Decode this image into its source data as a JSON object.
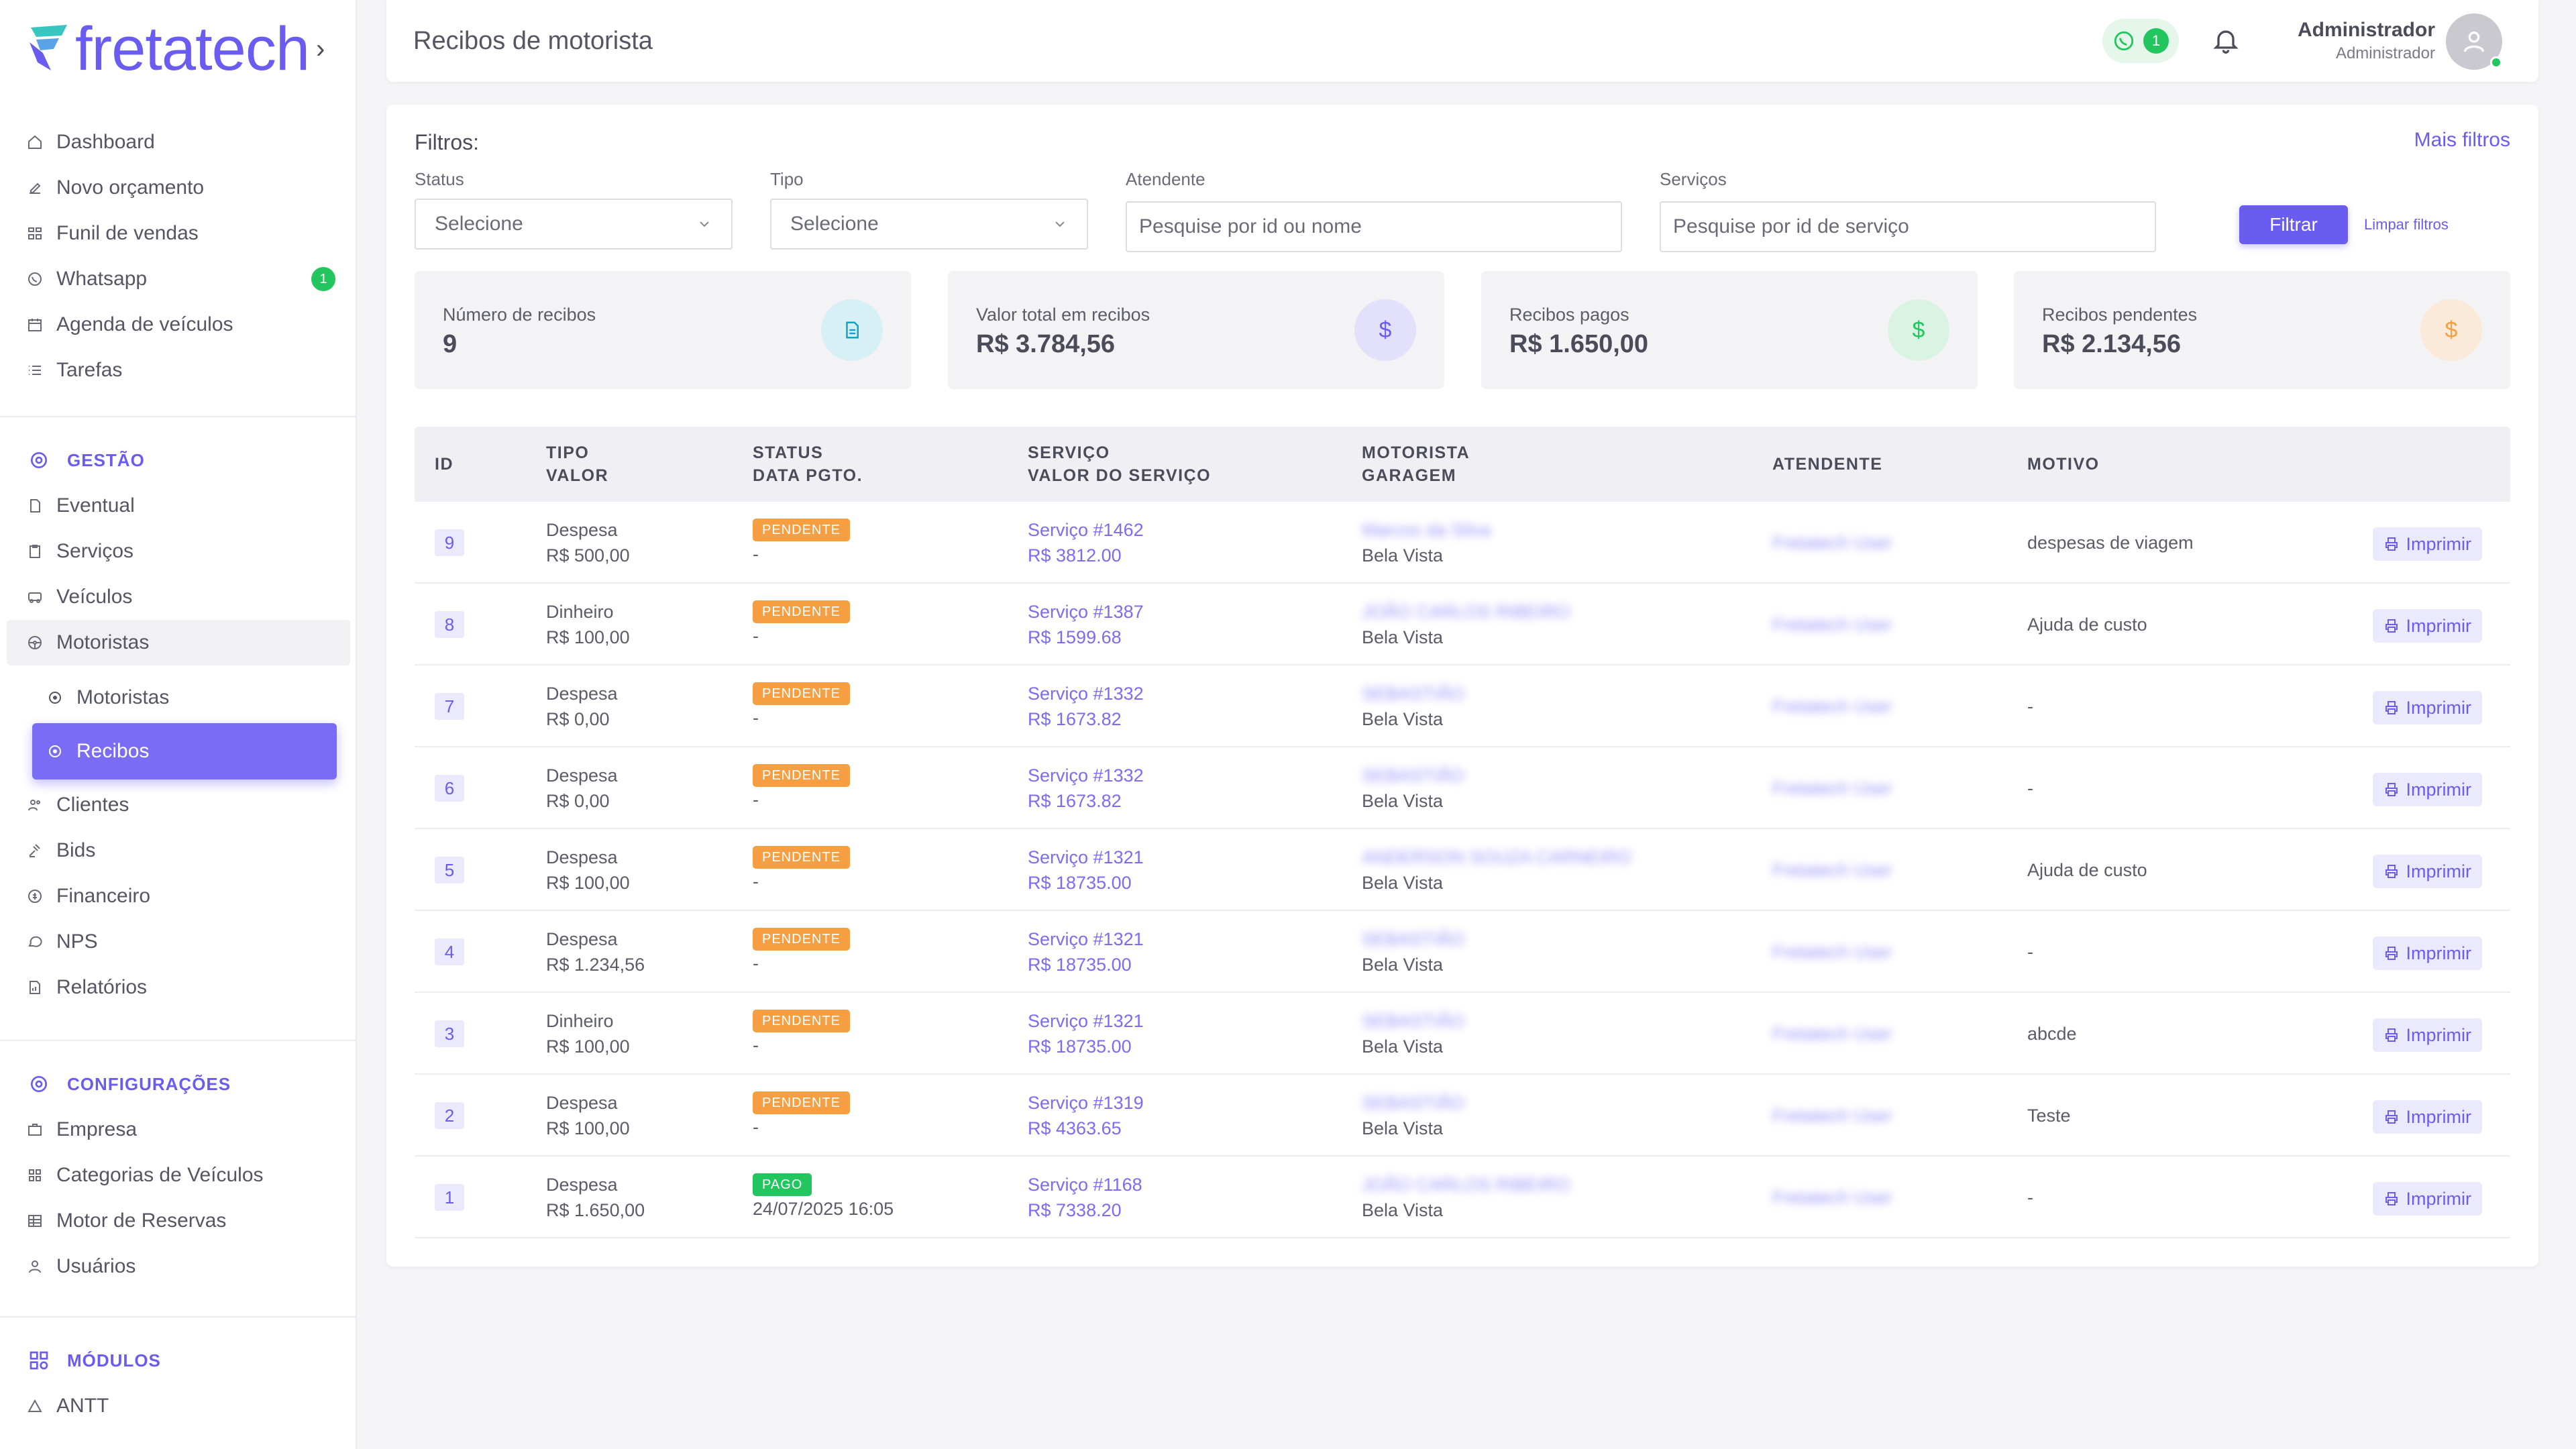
{
  "app": {
    "logo_text": "fretatech",
    "logo_chevron": "›"
  },
  "sidebar": {
    "main_items": [
      {
        "label": "Dashboard",
        "icon": "home-icon"
      },
      {
        "label": "Novo orçamento",
        "icon": "edit-icon"
      },
      {
        "label": "Funil de vendas",
        "icon": "funnel-icon"
      },
      {
        "label": "Whatsapp",
        "icon": "whatsapp-icon",
        "badge": "1"
      },
      {
        "label": "Agenda de veículos",
        "icon": "calendar-icon"
      },
      {
        "label": "Tarefas",
        "icon": "list-icon"
      }
    ],
    "gestao": {
      "heading": "GESTÃO",
      "items": [
        {
          "label": "Eventual"
        },
        {
          "label": "Serviços"
        },
        {
          "label": "Veículos"
        },
        {
          "label": "Motoristas"
        },
        {
          "label": "Motoristas"
        },
        {
          "label": "Recibos"
        },
        {
          "label": "Clientes"
        },
        {
          "label": "Bids"
        },
        {
          "label": "Financeiro"
        },
        {
          "label": "NPS"
        },
        {
          "label": "Relatórios"
        }
      ]
    },
    "config": {
      "heading": "CONFIGURAÇÕES",
      "items": [
        {
          "label": "Empresa"
        },
        {
          "label": "Categorias de Veículos"
        },
        {
          "label": "Motor de Reservas"
        },
        {
          "label": "Usuários"
        }
      ]
    },
    "modulos": {
      "heading": "MÓDULOS",
      "items": [
        {
          "label": "ANTT"
        }
      ]
    }
  },
  "header": {
    "title": "Recibos de motorista",
    "whatsapp_count": "1",
    "user_name": "Administrador",
    "user_role": "Administrador"
  },
  "filters": {
    "title": "Filtros:",
    "more": "Mais filtros",
    "status": {
      "label": "Status",
      "value": "Selecione"
    },
    "tipo": {
      "label": "Tipo",
      "value": "Selecione"
    },
    "atendente": {
      "label": "Atendente",
      "placeholder": "Pesquise por id ou nome"
    },
    "servicos": {
      "label": "Serviços",
      "placeholder": "Pesquise por id de serviço"
    },
    "filter_button": "Filtrar",
    "clear_button": "Limpar filtros"
  },
  "stats": [
    {
      "label": "Número de recibos",
      "value": "9",
      "icon": "document-icon",
      "color": "#0ea5c6",
      "bg": "#d6f0f6"
    },
    {
      "label": "Valor total em recibos",
      "value": "R$ 3.784,56",
      "icon": "dollar-icon",
      "color": "#6a5cf0",
      "bg": "#e3e0fb"
    },
    {
      "label": "Recibos pagos",
      "value": "R$ 1.650,00",
      "icon": "dollar-icon",
      "color": "#22c55e",
      "bg": "#dbf3e3"
    },
    {
      "label": "Recibos pendentes",
      "value": "R$ 2.134,56",
      "icon": "dollar-icon",
      "color": "#f59e42",
      "bg": "#fbe9da"
    }
  ],
  "table": {
    "headers": {
      "id": "ID",
      "tipo": "TIPO",
      "valor": "VALOR",
      "status": "STATUS",
      "data": "DATA PGTO.",
      "servico": "SERVIÇO",
      "valor_servico": "VALOR DO SERVIÇO",
      "motorista": "MOTORISTA",
      "garagem": "GARAGEM",
      "atendente": "ATENDENTE",
      "motivo": "MOTIVO"
    },
    "print_label": "Imprimir",
    "rows": [
      {
        "id": "9",
        "tipo": "Despesa",
        "valor": "R$ 500,00",
        "status": "PENDENTE",
        "status_color": "#f59e42",
        "data": "-",
        "servico": "Serviço #1462",
        "valor_servico": "R$ 3812.00",
        "motorista": "Marcos da Silva",
        "garagem": "Bela Vista",
        "atendente": "Fretatech User",
        "motivo": "despesas de viagem"
      },
      {
        "id": "8",
        "tipo": "Dinheiro",
        "valor": "R$ 100,00",
        "status": "PENDENTE",
        "status_color": "#f59e42",
        "data": "-",
        "servico": "Serviço #1387",
        "valor_servico": "R$ 1599.68",
        "motorista": "JOÃO CARLOS RIBEIRO",
        "garagem": "Bela Vista",
        "atendente": "Fretatech User",
        "motivo": "Ajuda de custo"
      },
      {
        "id": "7",
        "tipo": "Despesa",
        "valor": "R$ 0,00",
        "status": "PENDENTE",
        "status_color": "#f59e42",
        "data": "-",
        "servico": "Serviço #1332",
        "valor_servico": "R$ 1673.82",
        "motorista": "SEBASTIÃO",
        "garagem": "Bela Vista",
        "atendente": "Fretatech User",
        "motivo": "-"
      },
      {
        "id": "6",
        "tipo": "Despesa",
        "valor": "R$ 0,00",
        "status": "PENDENTE",
        "status_color": "#f59e42",
        "data": "-",
        "servico": "Serviço #1332",
        "valor_servico": "R$ 1673.82",
        "motorista": "SEBASTIÃO",
        "garagem": "Bela Vista",
        "atendente": "Fretatech User",
        "motivo": "-"
      },
      {
        "id": "5",
        "tipo": "Despesa",
        "valor": "R$ 100,00",
        "status": "PENDENTE",
        "status_color": "#f59e42",
        "data": "-",
        "servico": "Serviço #1321",
        "valor_servico": "R$ 18735.00",
        "motorista": "ANDERSON SOUZA CARNEIRO",
        "garagem": "Bela Vista",
        "atendente": "Fretatech User",
        "motivo": "Ajuda de custo"
      },
      {
        "id": "4",
        "tipo": "Despesa",
        "valor": "R$ 1.234,56",
        "status": "PENDENTE",
        "status_color": "#f59e42",
        "data": "-",
        "servico": "Serviço #1321",
        "valor_servico": "R$ 18735.00",
        "motorista": "SEBASTIÃO",
        "garagem": "Bela Vista",
        "atendente": "Fretatech User",
        "motivo": "-"
      },
      {
        "id": "3",
        "tipo": "Dinheiro",
        "valor": "R$ 100,00",
        "status": "PENDENTE",
        "status_color": "#f59e42",
        "data": "-",
        "servico": "Serviço #1321",
        "valor_servico": "R$ 18735.00",
        "motorista": "SEBASTIÃO",
        "garagem": "Bela Vista",
        "atendente": "Fretatech User",
        "motivo": "abcde"
      },
      {
        "id": "2",
        "tipo": "Despesa",
        "valor": "R$ 100,00",
        "status": "PENDENTE",
        "status_color": "#f59e42",
        "data": "-",
        "servico": "Serviço #1319",
        "valor_servico": "R$ 4363.65",
        "motorista": "SEBASTIÃO",
        "garagem": "Bela Vista",
        "atendente": "Fretatech User",
        "motivo": "Teste"
      },
      {
        "id": "1",
        "tipo": "Despesa",
        "valor": "R$ 1.650,00",
        "status": "PAGO",
        "status_color": "#22c55e",
        "data": "24/07/2025 16:05",
        "servico": "Serviço #1168",
        "valor_servico": "R$ 7338.20",
        "motorista": "JOÃO CARLOS RIBEIRO",
        "garagem": "Bela Vista",
        "atendente": "Fretatech User",
        "motivo": "-"
      }
    ]
  }
}
